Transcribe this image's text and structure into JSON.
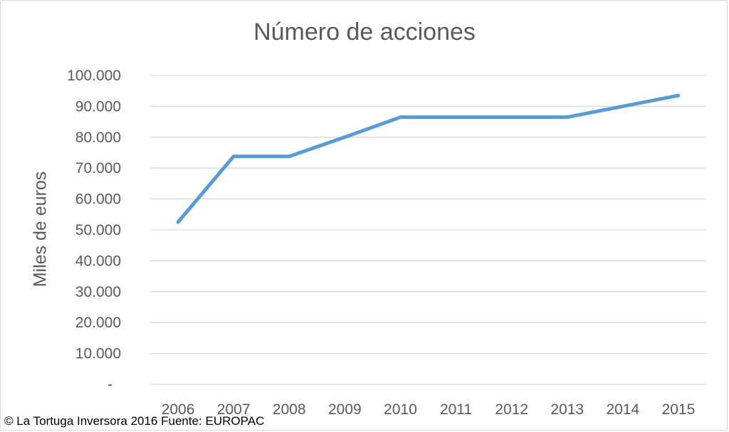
{
  "chart_data": {
    "type": "line",
    "title": "Número de acciones",
    "ylabel": "Miles de euros",
    "xlabel": "",
    "categories": [
      "2006",
      "2007",
      "2008",
      "2009",
      "2010",
      "2011",
      "2012",
      "2013",
      "2014",
      "2015"
    ],
    "series": [
      {
        "values": [
          52500,
          73800,
          73800,
          80000,
          86500,
          86500,
          86500,
          86500,
          90000,
          93500
        ]
      }
    ],
    "ylim": [
      0,
      100000
    ],
    "yticks": [
      0,
      10000,
      20000,
      30000,
      40000,
      50000,
      60000,
      70000,
      80000,
      90000,
      100000
    ],
    "ytick_labels": [
      "-",
      "10.000",
      "20.000",
      "30.000",
      "40.000",
      "50.000",
      "60.000",
      "70.000",
      "80.000",
      "90.000",
      "100.000"
    ],
    "grid": true,
    "legend": "none",
    "line_color": "#5b9bd5",
    "grid_color": "#d9d9d9"
  },
  "footer": "© La Tortuga Inversora 2016 Fuente: EUROPAC"
}
